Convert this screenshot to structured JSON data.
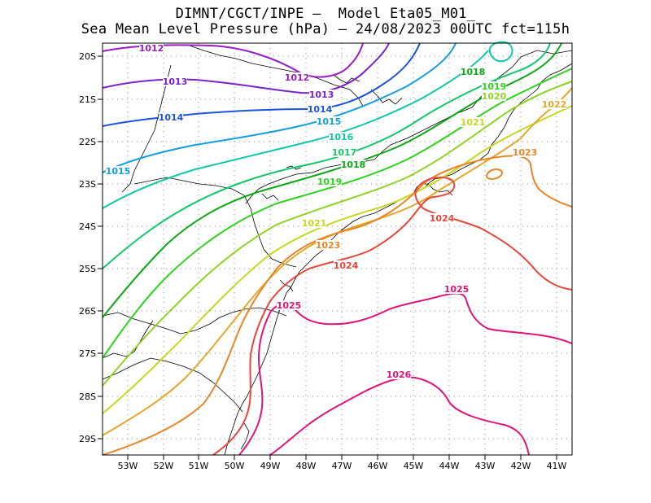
{
  "title_line1": "DIMNT/CGCT/INPE –  Model Eta05_M01_",
  "title_line2": "Sea Mean Level Pressure (hPa) – 24/08/2023 00UTC fct=115h",
  "map": {
    "lon_range": [
      -53.7,
      -40.5
    ],
    "lat_range": [
      -29.5,
      -19.7
    ],
    "lat_ticks": [
      "20S",
      "21S",
      "22S",
      "23S",
      "24S",
      "25S",
      "26S",
      "27S",
      "28S",
      "29S"
    ],
    "lon_ticks": [
      "53W",
      "52W",
      "51W",
      "50W",
      "49W",
      "48W",
      "47W",
      "46W",
      "45W",
      "44W",
      "43W",
      "42W",
      "41W"
    ],
    "contour_labels": [
      {
        "text": "1012",
        "color": "#9b1bc6"
      },
      {
        "text": "1012",
        "color": "#9b1bc6"
      },
      {
        "text": "1013",
        "color": "#7b22cc"
      },
      {
        "text": "1013",
        "color": "#7b22cc"
      },
      {
        "text": "1014",
        "color": "#1e52e0"
      },
      {
        "text": "1014",
        "color": "#1e52e0"
      },
      {
        "text": "1015",
        "color": "#129ee0"
      },
      {
        "text": "1015",
        "color": "#129ee0"
      },
      {
        "text": "1016",
        "color": "#10c7a6"
      },
      {
        "text": "1017",
        "color": "#12c76a"
      },
      {
        "text": "1018",
        "color": "#0aa814"
      },
      {
        "text": "1018",
        "color": "#0aa814"
      },
      {
        "text": "1019",
        "color": "#2cd41c"
      },
      {
        "text": "1019",
        "color": "#2cd41c"
      },
      {
        "text": "1020",
        "color": "#8fd424"
      },
      {
        "text": "1021",
        "color": "#c6d822"
      },
      {
        "text": "1021",
        "color": "#c6d822"
      },
      {
        "text": "1022",
        "color": "#e3a82c"
      },
      {
        "text": "1023",
        "color": "#ea8526"
      },
      {
        "text": "1023",
        "color": "#ea8526"
      },
      {
        "text": "1024",
        "color": "#e8463a"
      },
      {
        "text": "1024",
        "color": "#e8463a"
      },
      {
        "text": "1025",
        "color": "#e01477"
      },
      {
        "text": "1025",
        "color": "#e01477"
      },
      {
        "text": "1026",
        "color": "#e01477"
      }
    ]
  }
}
